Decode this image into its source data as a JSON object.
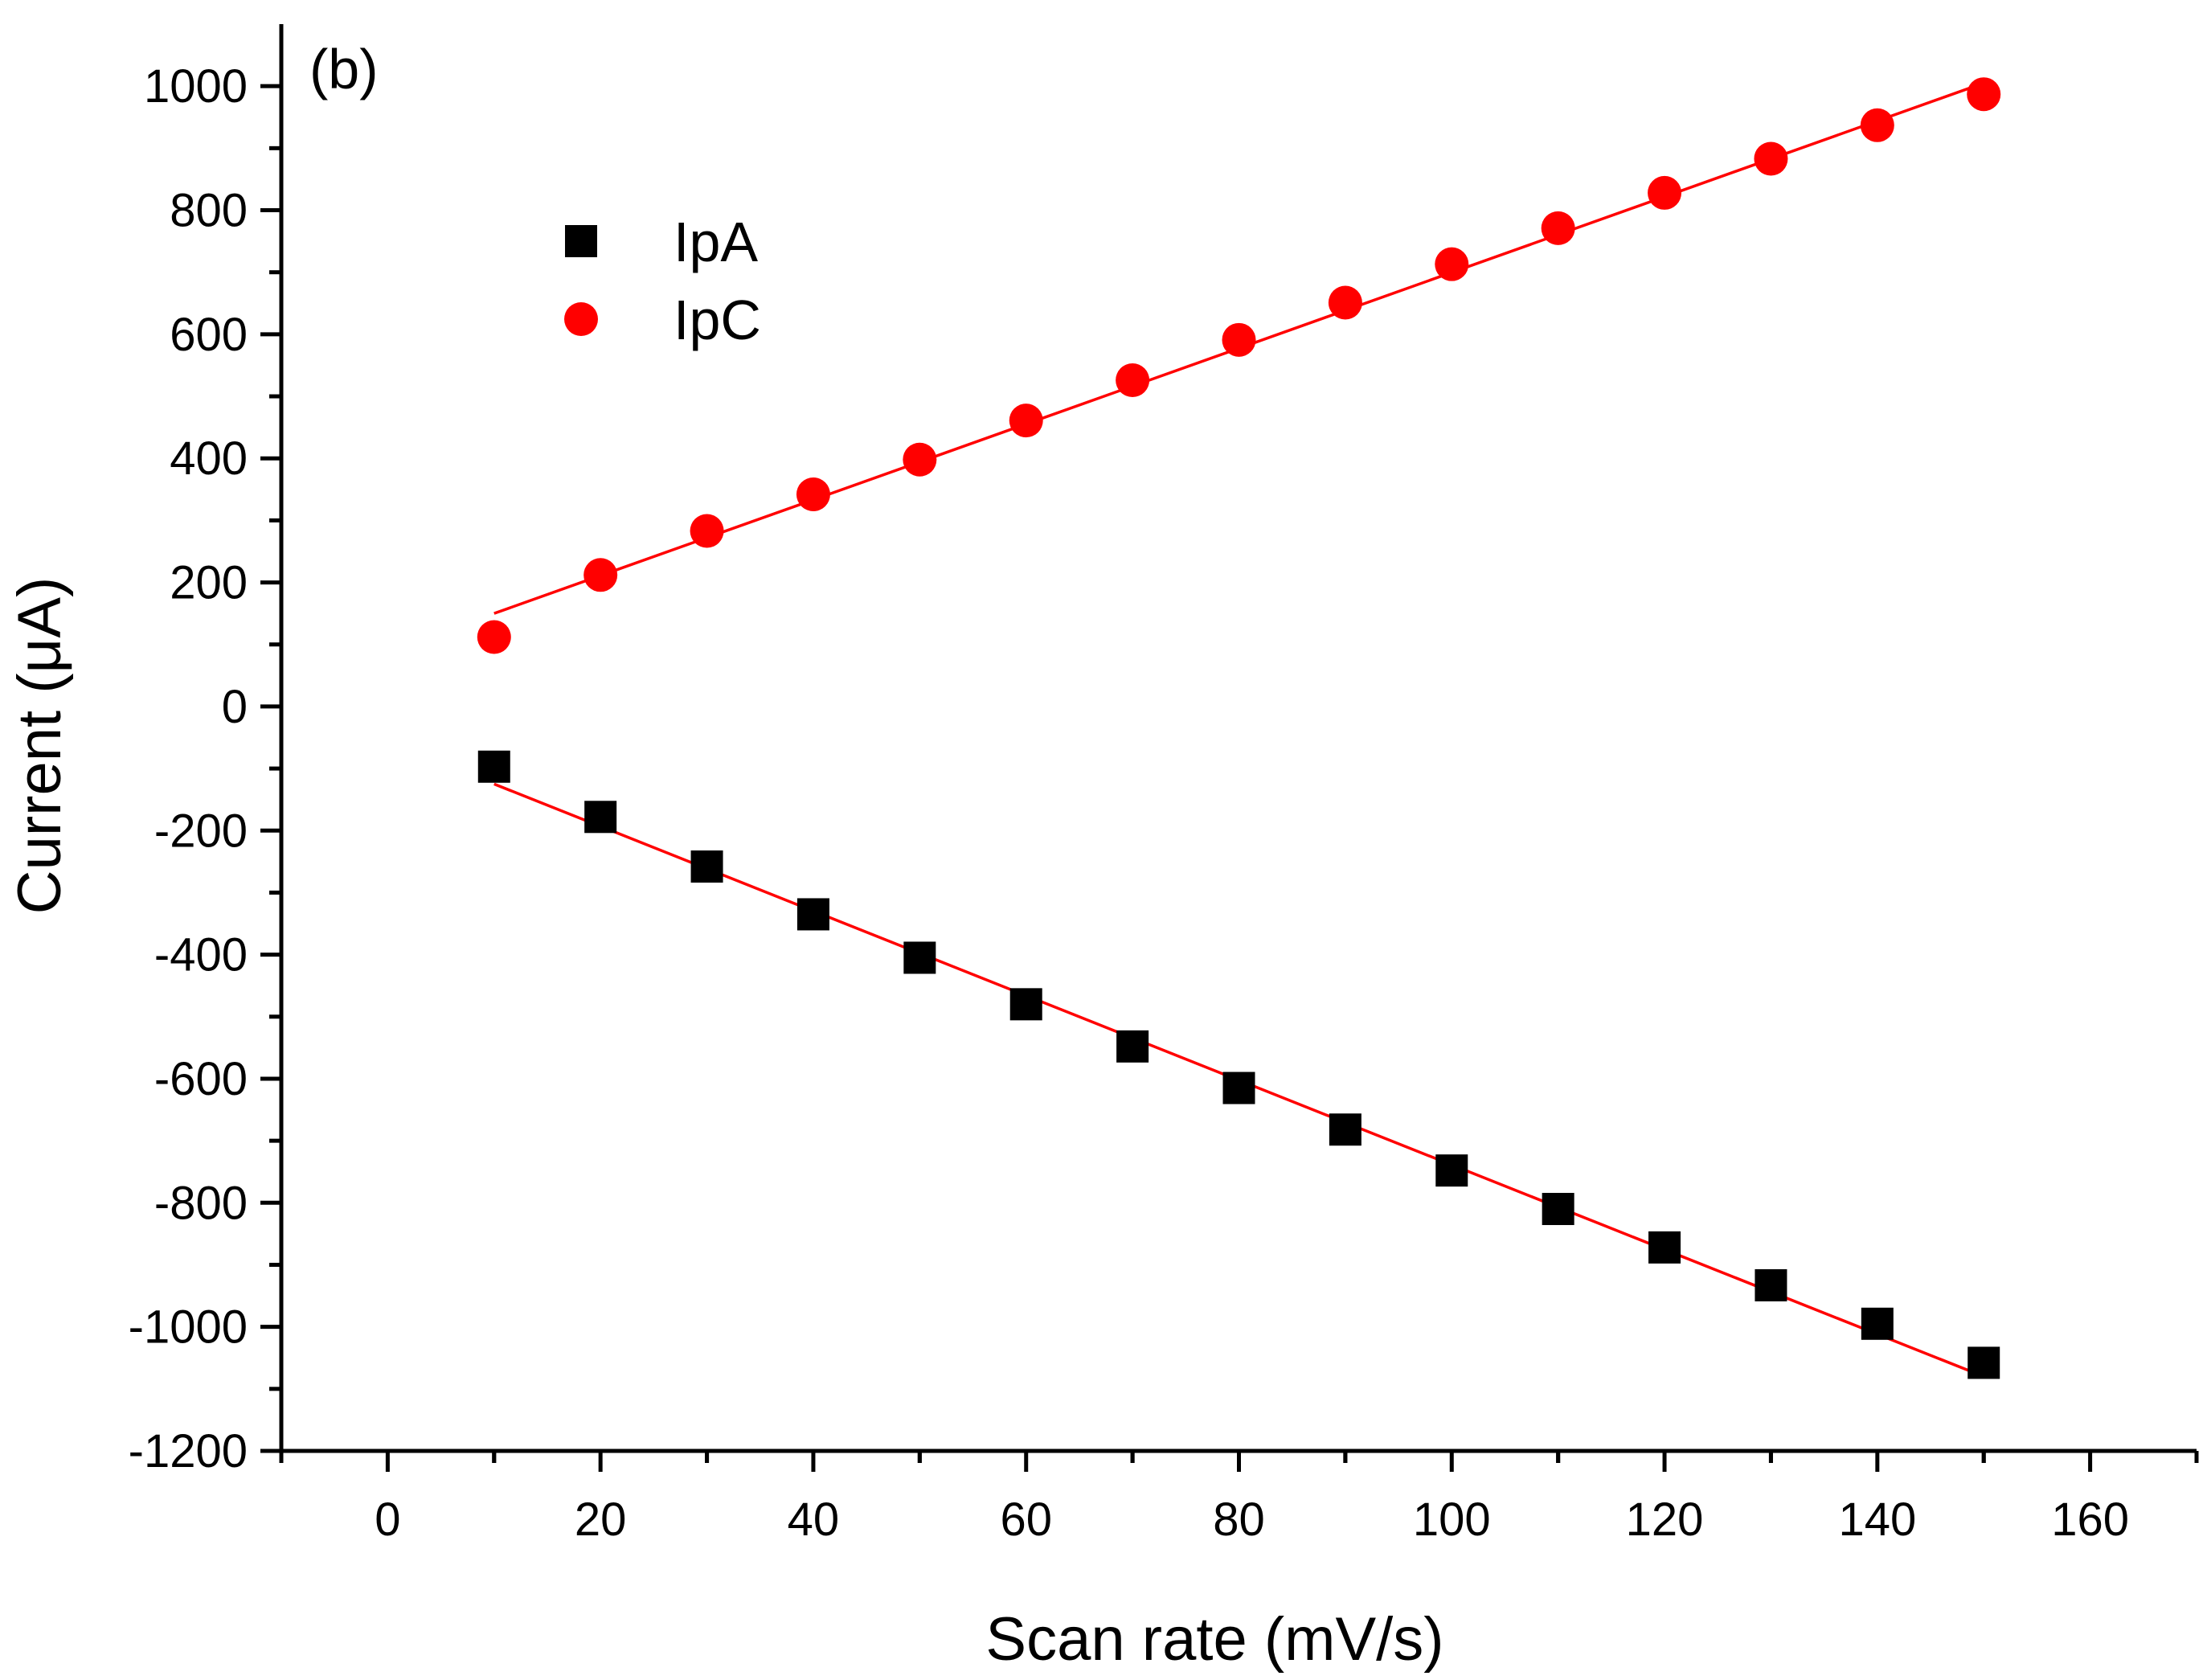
{
  "chart_data": {
    "type": "scatter",
    "panel_label": "(b)",
    "xlabel": "Scan rate (mV/s)",
    "ylabel": "Current (μA)",
    "xlim": [
      -10,
      170
    ],
    "ylim": [
      -1200,
      1100
    ],
    "x_ticks": [
      0,
      20,
      40,
      60,
      80,
      100,
      120,
      140,
      160
    ],
    "x_tick_labels": [
      "0",
      "20",
      "40",
      "60",
      "80",
      "100",
      "120",
      "140",
      "160"
    ],
    "y_ticks": [
      -1200,
      -1000,
      -800,
      -600,
      -400,
      -200,
      0,
      200,
      400,
      600,
      800,
      1000
    ],
    "y_tick_labels": [
      "-1200",
      "-1000",
      "-800",
      "-600",
      "-400",
      "-200",
      "0",
      "200",
      "400",
      "600",
      "800",
      "1000"
    ],
    "legend_position": "upper-left",
    "x": [
      10,
      20,
      30,
      40,
      50,
      60,
      70,
      80,
      90,
      100,
      110,
      120,
      130,
      140,
      150
    ],
    "series": [
      {
        "name": "IpA",
        "marker": "square",
        "color": "#000000",
        "values": [
          -97,
          -178,
          -258,
          -335,
          -405,
          -480,
          -548,
          -615,
          -682,
          -748,
          -810,
          -872,
          -933,
          -995,
          -1058
        ],
        "fit": {
          "x0": 10,
          "y0": -125,
          "x1": 150,
          "y1": -1080,
          "color": "#ff0000"
        }
      },
      {
        "name": "IpC",
        "marker": "circle",
        "color": "#ff0000",
        "values": [
          112,
          212,
          283,
          342,
          398,
          461,
          526,
          591,
          651,
          713,
          771,
          828,
          883,
          937,
          987
        ],
        "fit": {
          "x0": 10,
          "y0": 150,
          "x1": 150,
          "y1": 1005,
          "color": "#ff0000"
        }
      }
    ]
  }
}
